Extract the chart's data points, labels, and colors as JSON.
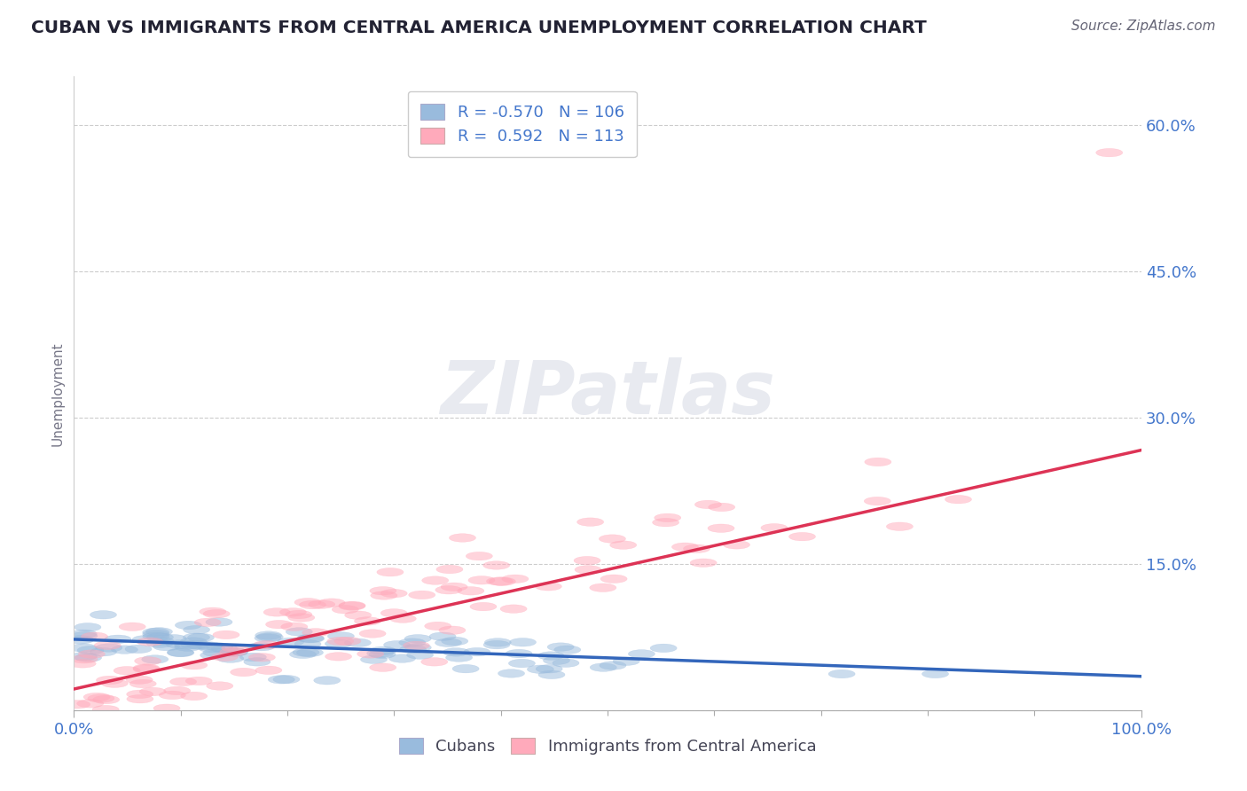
{
  "title": "CUBAN VS IMMIGRANTS FROM CENTRAL AMERICA UNEMPLOYMENT CORRELATION CHART",
  "source": "Source: ZipAtlas.com",
  "ylabel": "Unemployment",
  "xlim": [
    0,
    1.0
  ],
  "ylim": [
    0,
    0.65
  ],
  "yticks": [
    0.0,
    0.15,
    0.3,
    0.45,
    0.6
  ],
  "ytick_labels": [
    "",
    "15.0%",
    "30.0%",
    "45.0%",
    "60.0%"
  ],
  "xtick_labels": [
    "0.0%",
    "100.0%"
  ],
  "legend_R_blue": "-0.570",
  "legend_N_blue": "106",
  "legend_R_pink": "0.592",
  "legend_N_pink": "113",
  "blue_color": "#99bbdd",
  "pink_color": "#ffaabb",
  "blue_line_color": "#3366bb",
  "pink_line_color": "#dd3355",
  "grid_color": "#cccccc",
  "background_color": "#ffffff",
  "title_color": "#222233",
  "axis_label_color": "#4477cc",
  "watermark_color": "#e8eaf0",
  "blue_intercept": 0.073,
  "blue_slope": -0.038,
  "pink_intercept": 0.022,
  "pink_slope": 0.245,
  "seed": 7
}
